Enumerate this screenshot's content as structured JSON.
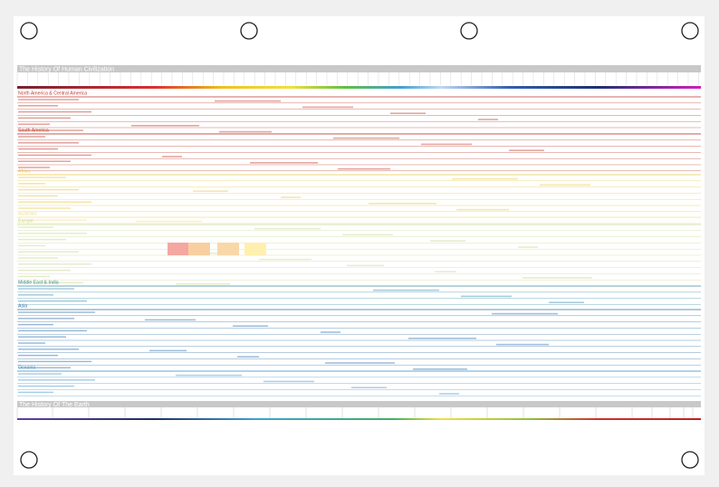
{
  "header": {
    "title": "The History Of Human Civilization"
  },
  "sections": [
    {
      "name": "North America & Central America",
      "color": "#c0392b"
    },
    {
      "name": "South America",
      "color": "#c0392b"
    },
    {
      "name": "Africa",
      "color": "#e8c84a"
    },
    {
      "name": "Australia",
      "color": "#f0e08a"
    },
    {
      "name": "Europe",
      "color": "#c8d890"
    },
    {
      "name": "Middle East & India",
      "color": "#3f8fb0"
    },
    {
      "name": "Asia",
      "color": "#2f6ea8"
    },
    {
      "name": "Oceania",
      "color": "#4a9ad0"
    }
  ],
  "footer": {
    "title": "The History Of The Earth"
  }
}
